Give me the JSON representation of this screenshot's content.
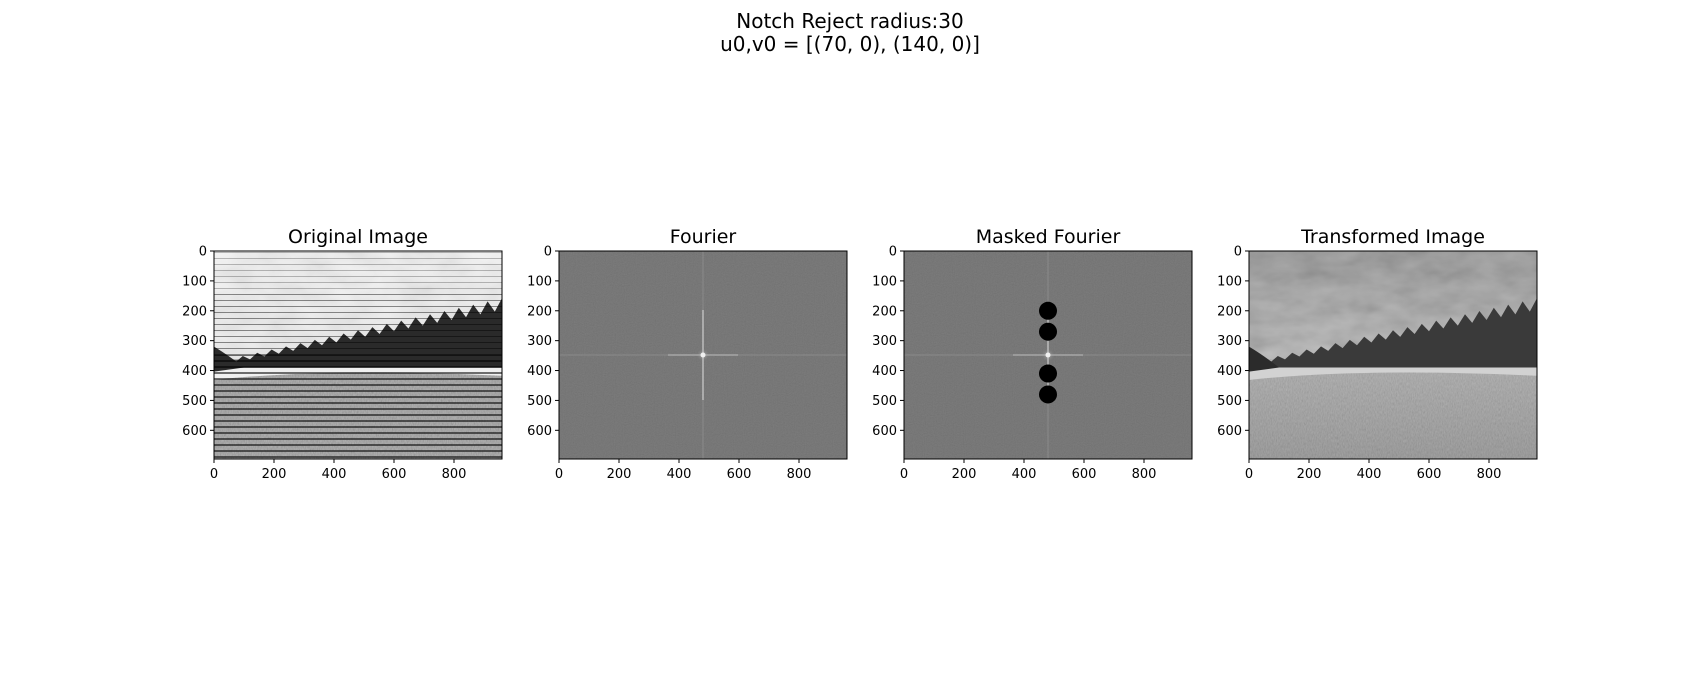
{
  "suptitle": {
    "line1": "Notch Reject radius:30",
    "line2": "u0,v0 = [(70, 0), (140, 0)]"
  },
  "xticks": [
    "0",
    "200",
    "400",
    "600",
    "800"
  ],
  "yticks": [
    "0",
    "100",
    "200",
    "300",
    "400",
    "500",
    "600"
  ],
  "xlim": [
    0,
    960
  ],
  "ylim": [
    0,
    696
  ],
  "panels": [
    {
      "title": "Original Image",
      "content": "landscape-image-with-horizontal-stripe-noise"
    },
    {
      "title": "Fourier",
      "content": "fourier-magnitude-spectrum"
    },
    {
      "title": "Masked Fourier",
      "content": "masked-fourier-spectrum",
      "notches": [
        [
          480,
          200
        ],
        [
          480,
          270
        ],
        [
          480,
          410
        ],
        [
          480,
          480
        ]
      ],
      "notch_radius": 30
    },
    {
      "title": "Transformed Image",
      "content": "filtered-landscape-image"
    }
  ],
  "colors": {
    "spectrum_gray": "#6e6e6e",
    "notch": "#000000"
  }
}
